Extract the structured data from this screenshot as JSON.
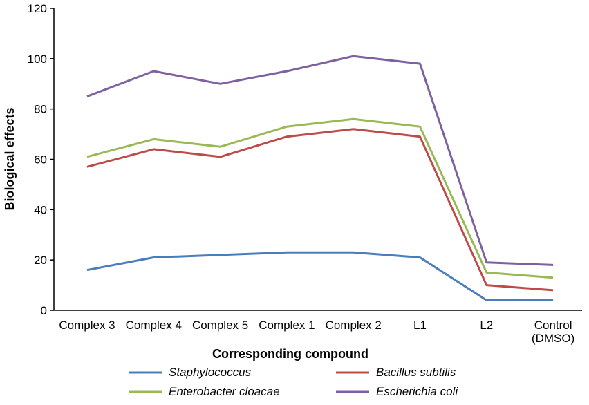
{
  "chart_data": {
    "type": "line",
    "title": "",
    "xlabel": "Corresponding compound",
    "ylabel": "Biological effects",
    "ylim": [
      0,
      120
    ],
    "yticks": [
      0,
      20,
      40,
      60,
      80,
      100,
      120
    ],
    "grid": false,
    "legend_position": "bottom",
    "categories": [
      [
        "Complex 3"
      ],
      [
        "Complex 4"
      ],
      [
        "Complex 5"
      ],
      [
        "Complex 1"
      ],
      [
        "Complex 2"
      ],
      [
        "L1"
      ],
      [
        "L2"
      ],
      [
        "Control",
        "(DMSO)"
      ]
    ],
    "series": [
      {
        "name": "Staphylococcus",
        "color": "#4a7ebb",
        "values": [
          16,
          21,
          22,
          23,
          23,
          21,
          4,
          4
        ]
      },
      {
        "name": "Bacillus subtilis",
        "color": "#be4b48",
        "values": [
          57,
          64,
          61,
          69,
          72,
          69,
          10,
          8
        ]
      },
      {
        "name": "Enterobacter cloacae",
        "color": "#98b954",
        "values": [
          61,
          68,
          65,
          73,
          76,
          73,
          15,
          13
        ]
      },
      {
        "name": "Escherichia coli",
        "color": "#7d60a0",
        "values": [
          85,
          95,
          90,
          95,
          101,
          98,
          19,
          18
        ]
      }
    ]
  }
}
